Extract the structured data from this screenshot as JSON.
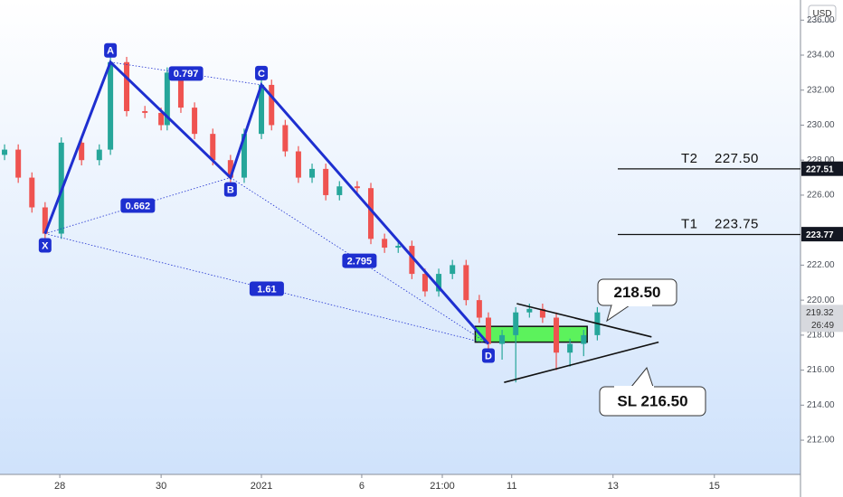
{
  "chart_data": {
    "type": "candlestick",
    "currency": "USD",
    "up_color": "#26a69a",
    "down_color": "#ef5350",
    "xlim": [
      0,
      158
    ],
    "ylim": [
      210.3,
      237.15
    ],
    "xticks": [
      {
        "value": 11.8,
        "label": "28"
      },
      {
        "value": 31.8,
        "label": "30"
      },
      {
        "value": 51.6,
        "label": "2021"
      },
      {
        "value": 71.4,
        "label": "6"
      },
      {
        "value": 87.3,
        "label": "21:00"
      },
      {
        "value": 101,
        "label": "11"
      },
      {
        "value": 121,
        "label": "13"
      },
      {
        "value": 141,
        "label": "15"
      }
    ],
    "yticks": [
      {
        "value": 212,
        "label": "212.00"
      },
      {
        "value": 214,
        "label": "214.00"
      },
      {
        "value": 216,
        "label": "216.00"
      },
      {
        "value": 218,
        "label": "218.00"
      },
      {
        "value": 220,
        "label": "220.00"
      },
      {
        "value": 222,
        "label": "222.00"
      },
      {
        "value": 226,
        "label": "226.00"
      },
      {
        "value": 228,
        "label": "228.00"
      },
      {
        "value": 230,
        "label": "230.00"
      },
      {
        "value": 232,
        "label": "232.00"
      },
      {
        "value": 234,
        "label": "234.00"
      },
      {
        "value": 236,
        "label": "236.00"
      }
    ],
    "x": [
      0.9,
      3.6,
      6.3,
      8.9,
      12.1,
      16.1,
      19.6,
      21.8,
      25,
      28.6,
      31.8,
      33,
      35.7,
      38.4,
      42,
      45.5,
      48.2,
      51.6,
      53.6,
      56.3,
      58.9,
      61.6,
      64.3,
      67,
      70.5,
      73.2,
      75.9,
      78.6,
      81.3,
      83.9,
      86.6,
      89.3,
      92,
      94.6,
      96.4,
      99.1,
      101.8,
      104.5,
      107.1,
      109.8,
      112.5,
      115.2,
      117.9
    ],
    "open": [
      228.3,
      228.6,
      227.0,
      225.3,
      223.8,
      229.0,
      228.0,
      228.6,
      233.6,
      230.8,
      230.7,
      230.0,
      233.0,
      231.0,
      229.5,
      228.0,
      227.0,
      229.5,
      232.3,
      230.0,
      228.5,
      227.0,
      227.5,
      226.0,
      226.5,
      226.4,
      223.5,
      223.0,
      223.1,
      221.5,
      220.5,
      221.5,
      222.0,
      220.0,
      219.0,
      217.5,
      218.0,
      219.3,
      219.5,
      219.0,
      217.0,
      217.5,
      218.0
    ],
    "high": [
      228.9,
      228.9,
      227.3,
      225.6,
      229.3,
      229.3,
      228.9,
      233.9,
      233.9,
      231.1,
      231.0,
      233.3,
      233.3,
      231.3,
      229.8,
      228.3,
      229.8,
      232.6,
      232.6,
      230.3,
      228.8,
      227.8,
      227.8,
      226.8,
      226.8,
      226.7,
      223.8,
      223.4,
      223.4,
      221.8,
      221.8,
      222.3,
      222.3,
      220.3,
      219.3,
      218.3,
      219.6,
      219.8,
      219.8,
      219.3,
      217.8,
      218.3,
      219.6
    ],
    "low": [
      228.0,
      226.7,
      225.0,
      223.5,
      223.5,
      227.7,
      227.7,
      228.3,
      230.5,
      230.4,
      229.7,
      229.7,
      230.7,
      229.2,
      227.7,
      226.7,
      226.7,
      229.2,
      229.7,
      228.2,
      226.7,
      226.7,
      225.7,
      225.7,
      226.1,
      223.2,
      222.7,
      222.7,
      221.2,
      220.2,
      220.2,
      221.2,
      219.7,
      218.7,
      217.2,
      216.6,
      215.3,
      219.0,
      218.7,
      216.0,
      216.2,
      216.8,
      217.7
    ],
    "close": [
      228.6,
      227.0,
      225.3,
      223.8,
      229.0,
      228.0,
      228.6,
      233.6,
      230.8,
      230.7,
      230.0,
      233.0,
      231.0,
      229.5,
      228.0,
      227.0,
      229.5,
      232.3,
      230.0,
      228.5,
      227.0,
      227.5,
      226.0,
      226.5,
      226.4,
      223.5,
      223.0,
      223.1,
      221.5,
      220.5,
      221.5,
      222.0,
      220.0,
      219.0,
      217.5,
      218.0,
      219.3,
      219.5,
      219.0,
      217.0,
      217.5,
      218.0,
      219.3
    ],
    "pattern": {
      "color": "#1e2fd0",
      "points": [
        {
          "label": "X",
          "x": 8.9,
          "y": 223.8
        },
        {
          "label": "A",
          "x": 21.8,
          "y": 233.6
        },
        {
          "label": "B",
          "x": 45.5,
          "y": 227.0
        },
        {
          "label": "C",
          "x": 51.6,
          "y": 232.3
        },
        {
          "label": "D",
          "x": 96.4,
          "y": 217.5
        }
      ],
      "ratios": [
        0.797,
        0.662,
        2.795,
        1.61
      ]
    },
    "zone": {
      "x": [
        93.8,
        115.9
      ],
      "low": 217.6,
      "high": 218.5,
      "color": "#5cf25c"
    },
    "trendlines": [
      {
        "x": [
          102,
          128.6
        ],
        "y": [
          219.8,
          217.9
        ]
      },
      {
        "x": [
          99.5,
          130
        ],
        "y": [
          215.3,
          217.6
        ]
      }
    ],
    "targets": [
      {
        "label": "T2",
        "value": 227.5,
        "value_label": "227.50"
      },
      {
        "label": "T1",
        "value": 223.75,
        "value_label": "223.75"
      }
    ],
    "price_tags": [
      227.51,
      223.77
    ],
    "last_price": 219.32,
    "countdown": "26:49",
    "callouts": [
      "218.50",
      "SL 216.50"
    ]
  }
}
